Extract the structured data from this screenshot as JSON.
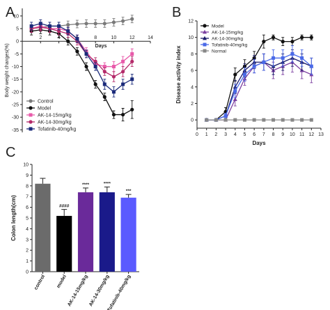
{
  "panels": {
    "A": "A",
    "B": "B",
    "C": "C"
  },
  "chart_data": [
    {
      "panel": "A",
      "type": "line",
      "xlabel": "Days",
      "ylabel": "Body weight changes(%)",
      "x_ticks": [
        2,
        4,
        6,
        8,
        10,
        12,
        14
      ],
      "y_ticks": [
        10,
        5,
        0,
        -5,
        -10,
        -15,
        -20,
        -25,
        -30,
        -35
      ],
      "xlim": [
        0,
        14
      ],
      "ylim": [
        -36,
        13
      ],
      "legend_position": "bottom-left",
      "x": [
        1,
        2,
        3,
        4,
        5,
        6,
        7,
        8,
        9,
        10,
        11,
        12
      ],
      "series": [
        {
          "name": "Control",
          "color": "#7a7a7a",
          "marker": "circle",
          "values": [
            5,
            5.5,
            6,
            6,
            6.5,
            6.8,
            7,
            7,
            7,
            7.5,
            8,
            8.8
          ],
          "errors": [
            1.5,
            1.5,
            1.5,
            1.5,
            1.5,
            1.5,
            1.5,
            1.5,
            1.5,
            1.5,
            1.5,
            1.5
          ]
        },
        {
          "name": "Model",
          "color": "#111111",
          "marker": "circle",
          "values": [
            4,
            4.5,
            4,
            3,
            0,
            -4,
            -10,
            -17,
            -22,
            -29,
            -29,
            -27
          ],
          "errors": [
            1.5,
            1.5,
            1.5,
            1.5,
            1.5,
            1.5,
            1.5,
            1.5,
            1.5,
            1.5,
            2.5,
            3.5
          ]
        },
        {
          "name": "AK-14-15mg/kg",
          "color": "#e85aaa",
          "marker": "square",
          "values": [
            5,
            6,
            5,
            5,
            4,
            1,
            -4,
            -9,
            -10,
            -10,
            -8,
            -5
          ],
          "errors": [
            1.5,
            1.5,
            1.5,
            1.5,
            1.5,
            1.5,
            1.5,
            1.5,
            1.5,
            2,
            2,
            2
          ]
        },
        {
          "name": "AK-14-30mg/kg",
          "color": "#b42a6a",
          "marker": "circle",
          "values": [
            5,
            5.5,
            5,
            4,
            3,
            0,
            -5,
            -8,
            -12,
            -14,
            -12,
            -8
          ],
          "errors": [
            1.5,
            1.5,
            1.5,
            1.5,
            1.5,
            1.5,
            1.5,
            1.5,
            1.5,
            2,
            2,
            2
          ]
        },
        {
          "name": "Tofatinib-40mg/kg",
          "color": "#1a2a7a",
          "marker": "square",
          "values": [
            6,
            7,
            6,
            6,
            4,
            1,
            -5,
            -10,
            -17,
            -20,
            -17,
            -15
          ],
          "errors": [
            1.5,
            1.5,
            1.5,
            1.5,
            1.5,
            1.5,
            1.5,
            1.5,
            2,
            2,
            2,
            2
          ]
        }
      ]
    },
    {
      "panel": "B",
      "type": "line",
      "xlabel": "Days",
      "ylabel": "Disease activity index",
      "x_ticks": [
        0,
        1,
        2,
        3,
        4,
        5,
        6,
        7,
        8,
        9,
        10,
        11,
        12,
        13
      ],
      "y_ticks": [
        0,
        2,
        4,
        6,
        8,
        10,
        12
      ],
      "xlim": [
        0,
        13
      ],
      "ylim": [
        -1,
        12
      ],
      "legend_position": "top-left",
      "x": [
        1,
        2,
        3,
        4,
        5,
        6,
        7,
        8,
        9,
        10,
        11,
        12
      ],
      "series": [
        {
          "name": "Model",
          "color": "#111111",
          "marker": "circle",
          "values": [
            0,
            0,
            1,
            5.5,
            6.5,
            7.5,
            9.5,
            10,
            9.5,
            9.5,
            10,
            10
          ],
          "errors": [
            0,
            0,
            0.5,
            0.8,
            0.8,
            0.8,
            0.8,
            0.3,
            0.5,
            0.5,
            0.3,
            0.3
          ]
        },
        {
          "name": "AK-14-15mg/kg",
          "color": "#7b3fa0",
          "marker": "triangle",
          "values": [
            0,
            0,
            0,
            2.5,
            5,
            6.5,
            7,
            6,
            6.5,
            7,
            6,
            5.5
          ],
          "errors": [
            0,
            0,
            0,
            0.8,
            0.8,
            0.8,
            1,
            1,
            1,
            1.2,
            1,
            1
          ]
        },
        {
          "name": "AK-14-30mg/kg",
          "color": "#1a1a6a",
          "marker": "triangle",
          "values": [
            0,
            0,
            0.5,
            4,
            6,
            7,
            7,
            6.5,
            7,
            7.5,
            7,
            6.5
          ],
          "errors": [
            0,
            0,
            0.3,
            0.8,
            0.8,
            0.8,
            1,
            1,
            1,
            1,
            1,
            1
          ]
        },
        {
          "name": "Tofatinib-40mg/kg",
          "color": "#4a6ae8",
          "marker": "square",
          "values": [
            0,
            0,
            0.5,
            3.5,
            5.5,
            6.5,
            7,
            7.5,
            7.5,
            8,
            7.5,
            6.5
          ],
          "errors": [
            0,
            0,
            0.3,
            0.8,
            0.8,
            0.8,
            1,
            1,
            1,
            1,
            1,
            1
          ]
        },
        {
          "name": "Normal",
          "color": "#888888",
          "marker": "square",
          "values": [
            0,
            0,
            0,
            0,
            0,
            0,
            0,
            0,
            0,
            0,
            0,
            0
          ],
          "errors": [
            0,
            0,
            0,
            0,
            0,
            0,
            0,
            0,
            0,
            0,
            0,
            0
          ]
        }
      ]
    },
    {
      "panel": "C",
      "type": "bar",
      "xlabel": "",
      "ylabel": "Colon length(cm)",
      "y_ticks": [
        0,
        1,
        2,
        3,
        4,
        5,
        6,
        7,
        8,
        9,
        10
      ],
      "ylim": [
        0,
        10
      ],
      "categories": [
        "control",
        "model",
        "AK-14-15mg/kg",
        "AK-14-30mg/kg",
        "Tofatinib-40mg/kg"
      ],
      "values": [
        8.2,
        5.2,
        7.4,
        7.4,
        6.9
      ],
      "errors": [
        0.5,
        0.6,
        0.4,
        0.5,
        0.3
      ],
      "significance": [
        "",
        "####",
        "****",
        "****",
        "***"
      ],
      "colors": [
        "#6b6b6b",
        "#000000",
        "#6a2a9a",
        "#1a1a8a",
        "#5a5aff"
      ]
    }
  ]
}
